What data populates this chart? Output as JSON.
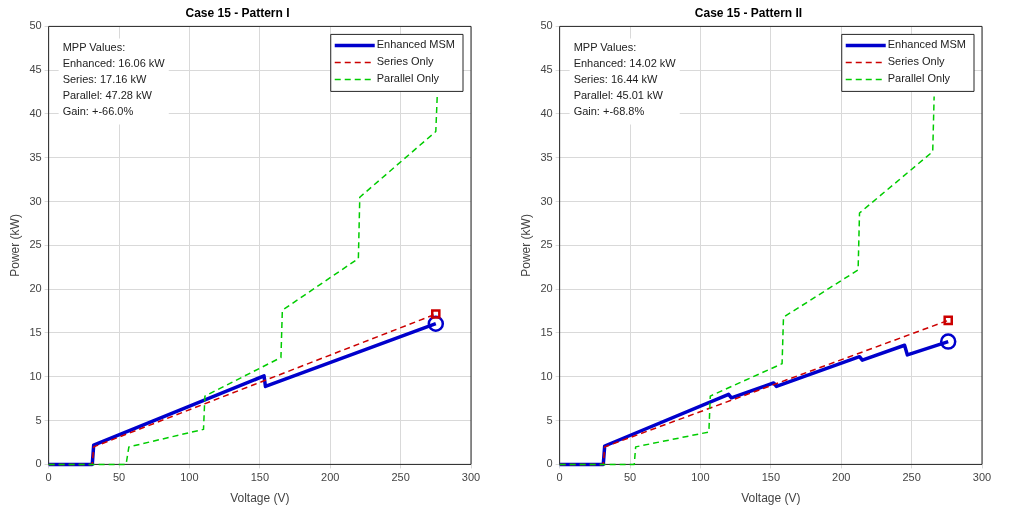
{
  "chart_data": [
    {
      "type": "line",
      "title": "Case 15 - Pattern I",
      "xlabel": "Voltage (V)",
      "ylabel": "Power (kW)",
      "xlim": [
        0,
        300
      ],
      "xticks": [
        0,
        50,
        100,
        150,
        200,
        250,
        300
      ],
      "ylim": [
        0,
        50
      ],
      "yticks": [
        0,
        5,
        10,
        15,
        20,
        25,
        30,
        35,
        40,
        45,
        50
      ],
      "grid": true,
      "legend": "top right",
      "marker": "none",
      "annotations": [
        "MPP Values:",
        "Enhanced: 16.06 kW",
        "Series: 17.16 kW",
        "Parallel: 47.28 kW",
        "Gain: +-66.0%"
      ],
      "series": [
        {
          "name": "Enhanced MSM",
          "color": "#0000cc",
          "line_style": "solid",
          "x": [
            0,
            31,
            32,
            153,
            154,
            275
          ],
          "values": [
            0,
            0,
            2.2,
            10.1,
            8.9,
            16.06
          ]
        },
        {
          "name": "Series Only",
          "color": "#cc0000",
          "line_style": "dashed",
          "x": [
            0,
            31,
            32,
            275
          ],
          "values": [
            0,
            0,
            2.0,
            17.16
          ]
        },
        {
          "name": "Parallel Only",
          "color": "#00cc00",
          "line_style": "dashed",
          "x": [
            0,
            55,
            57,
            110,
            111,
            165,
            166,
            220,
            221,
            275,
            276
          ],
          "values": [
            0,
            0,
            2.0,
            4.0,
            7.8,
            12.2,
            17.6,
            23.5,
            30.5,
            38.0,
            42.0
          ]
        },
        {
          "type": "scatter",
          "marker": "circle",
          "color": "#0000cc",
          "x": [
            275
          ],
          "values": [
            16.06
          ]
        },
        {
          "type": "scatter",
          "marker": "square",
          "color": "#cc0000",
          "x": [
            275
          ],
          "values": [
            17.16
          ]
        }
      ]
    },
    {
      "type": "line",
      "title": "Case 15 - Pattern II",
      "xlabel": "Voltage (V)",
      "ylabel": "Power (kW)",
      "xlim": [
        0,
        300
      ],
      "xticks": [
        0,
        50,
        100,
        150,
        200,
        250,
        300
      ],
      "ylim": [
        0,
        50
      ],
      "yticks": [
        0,
        5,
        10,
        15,
        20,
        25,
        30,
        35,
        40,
        45,
        50
      ],
      "grid": true,
      "legend": "top right",
      "marker": "none",
      "annotations": [
        "MPP Values:",
        "Enhanced: 14.02 kW",
        "Series: 16.44 kW",
        "Parallel: 45.01 kW",
        "Gain: +-68.8%"
      ],
      "series": [
        {
          "name": "Enhanced MSM",
          "color": "#0000cc",
          "line_style": "solid",
          "x": [
            0,
            31,
            32,
            120,
            122,
            152,
            154,
            213,
            215,
            245,
            247,
            276
          ],
          "values": [
            0,
            0,
            2.1,
            8.0,
            7.6,
            9.3,
            8.9,
            12.3,
            11.9,
            13.6,
            12.5,
            14.02
          ]
        },
        {
          "name": "Series Only",
          "color": "#cc0000",
          "line_style": "dashed",
          "x": [
            0,
            31,
            32,
            276
          ],
          "values": [
            0,
            0,
            2.0,
            16.44
          ]
        },
        {
          "name": "Parallel Only",
          "color": "#00cc00",
          "line_style": "dashed",
          "x": [
            0,
            53,
            54,
            106,
            107,
            158,
            159,
            212,
            213,
            265,
            266
          ],
          "values": [
            0,
            0,
            2.0,
            3.7,
            7.8,
            11.5,
            16.8,
            22.2,
            28.7,
            35.7,
            42.0
          ]
        },
        {
          "type": "scatter",
          "marker": "circle",
          "color": "#0000cc",
          "x": [
            276
          ],
          "values": [
            14.02
          ]
        },
        {
          "type": "scatter",
          "marker": "square",
          "color": "#cc0000",
          "x": [
            276
          ],
          "values": [
            16.44
          ]
        }
      ]
    }
  ]
}
